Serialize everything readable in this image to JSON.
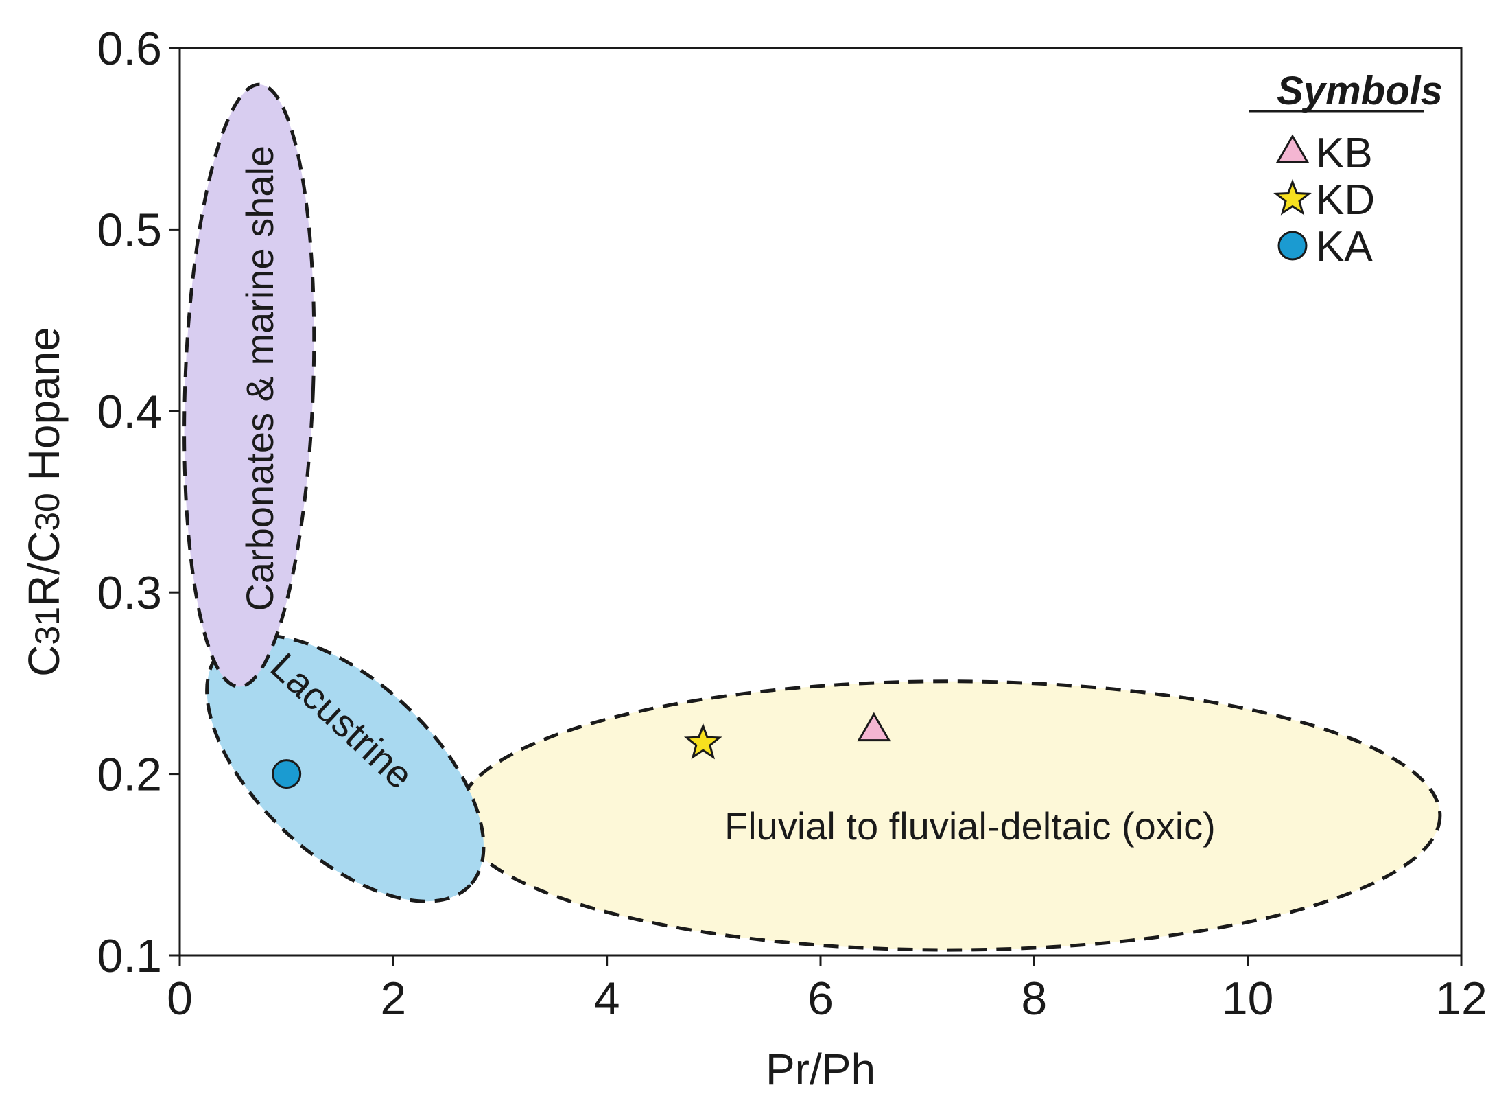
{
  "chart_data": {
    "type": "scatter",
    "xlabel": "Pr/Ph",
    "ylabel": "C31R/C30 Hopane",
    "ylabel_parts": [
      "C",
      "31",
      "R/C",
      "30",
      " Hopane"
    ],
    "xlim": [
      0,
      12
    ],
    "ylim": [
      0.1,
      0.6
    ],
    "xticks": [
      0,
      2,
      4,
      6,
      8,
      10,
      12
    ],
    "yticks": [
      0.1,
      0.2,
      0.3,
      0.4,
      0.5,
      0.6
    ],
    "ytick_labels": [
      "0.1",
      "0.2",
      "0.3",
      "0.4",
      "0.5",
      "0.6"
    ],
    "grid": false,
    "legend": {
      "title": "Symbols",
      "placement": "top-right",
      "entries": [
        {
          "label": "KB",
          "marker": "triangle",
          "color": "#f4b6d2"
        },
        {
          "label": "KD",
          "marker": "star",
          "color": "#f7e01f"
        },
        {
          "label": "KA",
          "marker": "circle",
          "color": "#1b9bd1"
        }
      ]
    },
    "series": [
      {
        "name": "KB",
        "marker": "triangle",
        "color": "#f4b6d2",
        "x": [
          6.5
        ],
        "y": [
          0.224
        ]
      },
      {
        "name": "KD",
        "marker": "star",
        "color": "#f7e01f",
        "x": [
          4.9
        ],
        "y": [
          0.217
        ]
      },
      {
        "name": "KA",
        "marker": "circle",
        "color": "#1b9bd1",
        "x": [
          1.0
        ],
        "y": [
          0.2
        ]
      }
    ],
    "regions": [
      {
        "label": "Fluvial to fluvial-deltaic (oxic)",
        "fill": "#fdf8d8",
        "cx": 7.2,
        "cy": 0.177,
        "rx": 4.6,
        "ry": 0.074,
        "rotation_deg": 0
      },
      {
        "label": "Lacustrine",
        "fill": "#a9d9f0",
        "cx": 1.55,
        "cy": 0.203,
        "rx": 1.6,
        "ry": 0.048,
        "rotation_deg": 43
      },
      {
        "label": "Carbonates & marine shale",
        "fill": "#d8cdf0",
        "cx": 0.65,
        "cy": 0.414,
        "rx": 0.6,
        "ry": 0.166,
        "rotation_deg": 2
      }
    ]
  }
}
